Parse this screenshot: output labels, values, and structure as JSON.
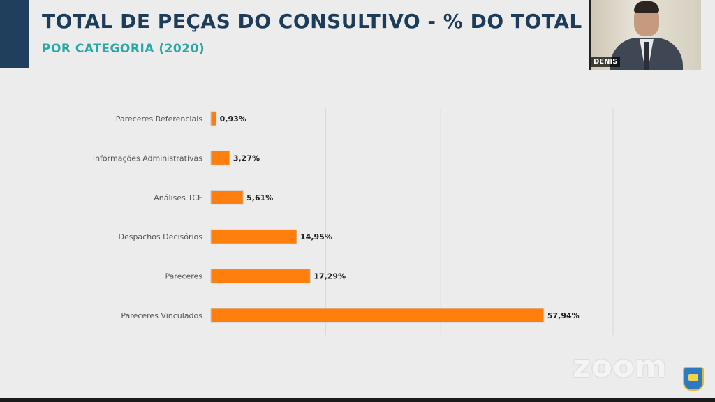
{
  "slide": {
    "title": "TOTAL DE PEÇAS DO CONSULTIVO - % DO TOTAL",
    "subtitle": "POR CATEGORIA (2020)"
  },
  "chart_data": {
    "type": "bar",
    "orientation": "horizontal",
    "categories": [
      "Pareceres Referenciais",
      "Informações Administrativas",
      "Análises TCE",
      "Despachos Decisórios",
      "Pareceres",
      "Pareceres Vinculados"
    ],
    "values": [
      0.93,
      3.27,
      5.61,
      14.95,
      17.29,
      57.94
    ],
    "value_labels": [
      "0,93%",
      "3,27%",
      "5,61%",
      "14,95%",
      "17,29%",
      "57,94%"
    ],
    "xlim": [
      0,
      70
    ],
    "grid": true,
    "bar_color": "#ff7f0e"
  },
  "video": {
    "participant_name": "DENIS"
  },
  "overlay": {
    "brand": "zoom"
  },
  "icons": {
    "emblem": "state-emblem-icon"
  }
}
